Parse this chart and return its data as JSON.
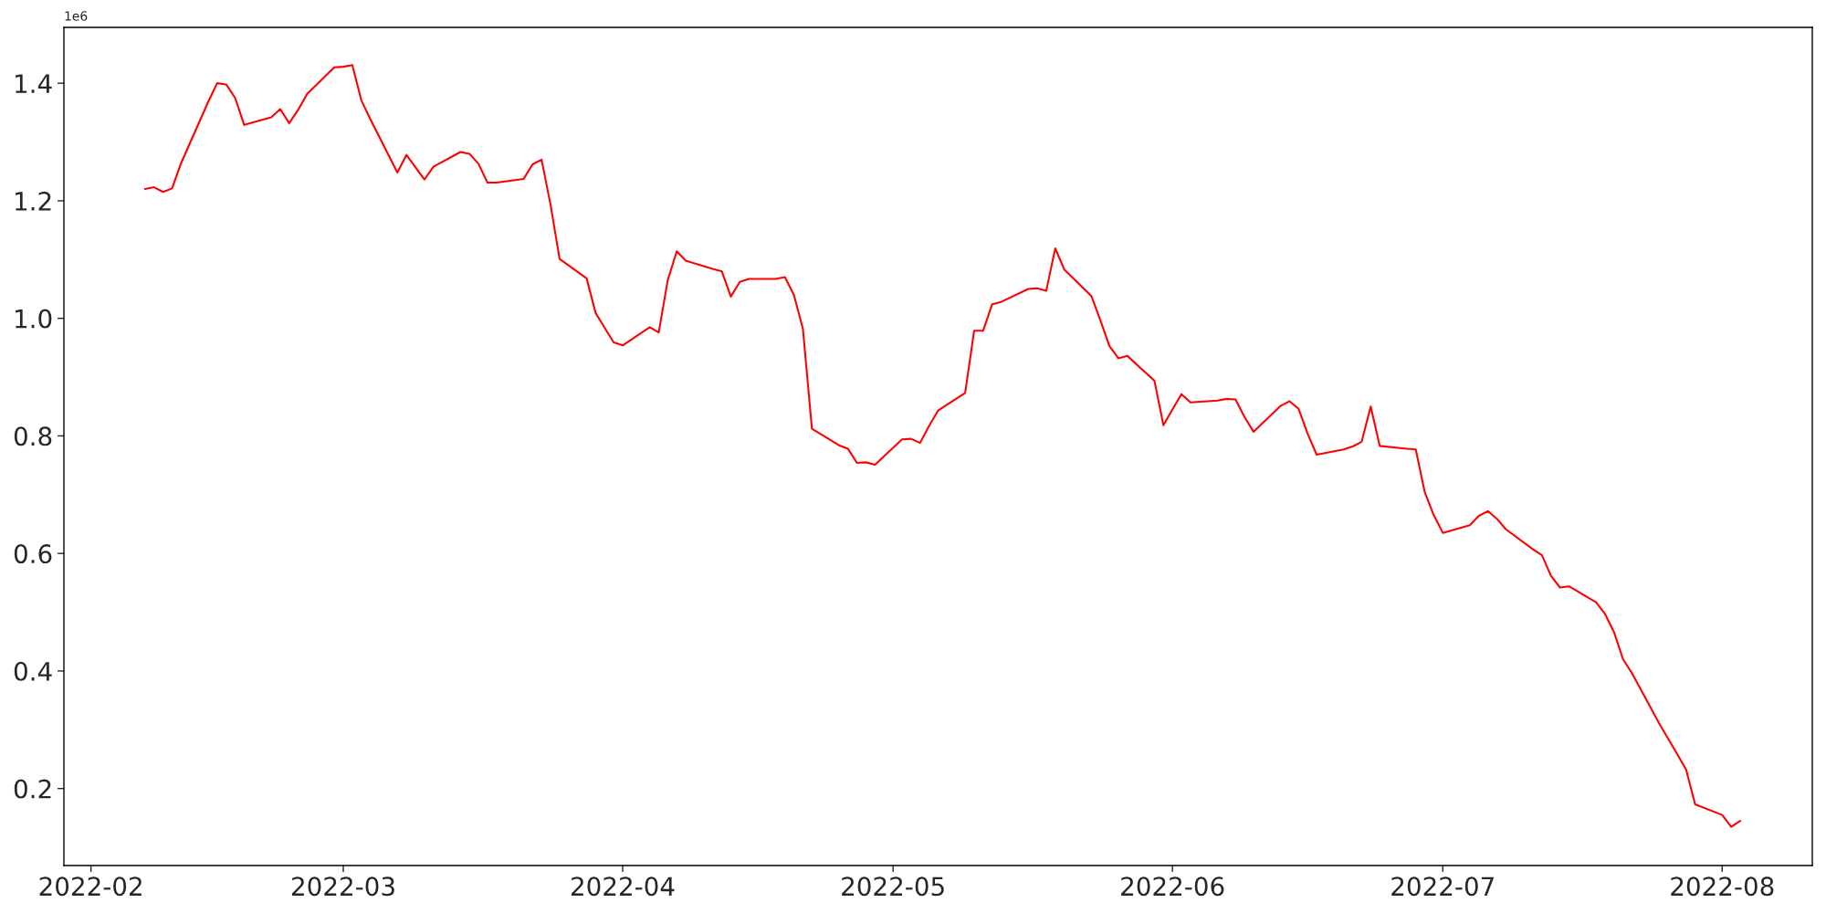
{
  "chart_data": {
    "type": "line",
    "x": [
      "2022-02-07",
      "2022-02-08",
      "2022-02-09",
      "2022-02-10",
      "2022-02-11",
      "2022-02-14",
      "2022-02-15",
      "2022-02-16",
      "2022-02-17",
      "2022-02-18",
      "2022-02-21",
      "2022-02-22",
      "2022-02-23",
      "2022-02-24",
      "2022-02-25",
      "2022-02-28",
      "2022-03-01",
      "2022-03-02",
      "2022-03-03",
      "2022-03-04",
      "2022-03-07",
      "2022-03-08",
      "2022-03-09",
      "2022-03-10",
      "2022-03-11",
      "2022-03-14",
      "2022-03-15",
      "2022-03-16",
      "2022-03-17",
      "2022-03-18",
      "2022-03-21",
      "2022-03-22",
      "2022-03-23",
      "2022-03-24",
      "2022-03-25",
      "2022-03-28",
      "2022-03-29",
      "2022-03-30",
      "2022-03-31",
      "2022-04-01",
      "2022-04-04",
      "2022-04-05",
      "2022-04-06",
      "2022-04-07",
      "2022-04-08",
      "2022-04-11",
      "2022-04-12",
      "2022-04-13",
      "2022-04-14",
      "2022-04-15",
      "2022-04-18",
      "2022-04-19",
      "2022-04-20",
      "2022-04-21",
      "2022-04-22",
      "2022-04-25",
      "2022-04-26",
      "2022-04-27",
      "2022-04-28",
      "2022-04-29",
      "2022-05-02",
      "2022-05-03",
      "2022-05-04",
      "2022-05-05",
      "2022-05-06",
      "2022-05-09",
      "2022-05-10",
      "2022-05-11",
      "2022-05-12",
      "2022-05-13",
      "2022-05-16",
      "2022-05-17",
      "2022-05-18",
      "2022-05-19",
      "2022-05-20",
      "2022-05-23",
      "2022-05-24",
      "2022-05-25",
      "2022-05-26",
      "2022-05-27",
      "2022-05-30",
      "2022-05-31",
      "2022-06-01",
      "2022-06-02",
      "2022-06-03",
      "2022-06-06",
      "2022-06-07",
      "2022-06-08",
      "2022-06-09",
      "2022-06-10",
      "2022-06-13",
      "2022-06-14",
      "2022-06-15",
      "2022-06-16",
      "2022-06-17",
      "2022-06-20",
      "2022-06-21",
      "2022-06-22",
      "2022-06-23",
      "2022-06-24",
      "2022-06-27",
      "2022-06-28",
      "2022-06-29",
      "2022-06-30",
      "2022-07-01",
      "2022-07-04",
      "2022-07-05",
      "2022-07-06",
      "2022-07-07",
      "2022-07-08",
      "2022-07-11",
      "2022-07-12",
      "2022-07-13",
      "2022-07-14",
      "2022-07-15",
      "2022-07-18",
      "2022-07-19",
      "2022-07-20",
      "2022-07-21",
      "2022-07-22",
      "2022-07-25",
      "2022-07-26",
      "2022-07-27",
      "2022-07-28",
      "2022-07-29",
      "2022-08-01",
      "2022-08-02",
      "2022-08-03"
    ],
    "series": [
      {
        "color": "#ff0000",
        "values": [
          1.22,
          1.223,
          1.215,
          1.221,
          1.264,
          1.368,
          1.4,
          1.398,
          1.375,
          1.329,
          1.342,
          1.356,
          1.332,
          1.355,
          1.382,
          1.427,
          1.428,
          1.431,
          1.371,
          1.339,
          1.248,
          1.278,
          1.257,
          1.236,
          1.258,
          1.283,
          1.28,
          1.263,
          1.231,
          1.231,
          1.237,
          1.262,
          1.27,
          1.193,
          1.101,
          1.068,
          1.009,
          0.984,
          0.959,
          0.954,
          0.985,
          0.976,
          1.065,
          1.114,
          1.098,
          1.084,
          1.08,
          1.037,
          1.062,
          1.067,
          1.067,
          1.07,
          1.04,
          0.982,
          0.812,
          0.784,
          0.778,
          0.754,
          0.755,
          0.751,
          0.794,
          0.795,
          0.788,
          0.817,
          0.843,
          0.873,
          0.979,
          0.979,
          1.024,
          1.028,
          1.05,
          1.051,
          1.047,
          1.119,
          1.083,
          1.038,
          0.997,
          0.953,
          0.932,
          0.936,
          0.894,
          0.818,
          0.845,
          0.871,
          0.857,
          0.86,
          0.863,
          0.862,
          0.832,
          0.807,
          0.851,
          0.859,
          0.846,
          0.804,
          0.768,
          0.777,
          0.782,
          0.79,
          0.85,
          0.783,
          0.778,
          0.777,
          0.704,
          0.665,
          0.635,
          0.648,
          0.664,
          0.672,
          0.659,
          0.641,
          0.607,
          0.597,
          0.562,
          0.542,
          0.544,
          0.517,
          0.497,
          0.466,
          0.42,
          0.396,
          0.311,
          0.285,
          0.259,
          0.232,
          0.173,
          0.155,
          0.135,
          0.145
        ]
      }
    ],
    "xlim": [
      "2022-01-29",
      "2022-08-11"
    ],
    "xticks": [
      {
        "value": "2022-02-01",
        "label": "2022-02"
      },
      {
        "value": "2022-03-01",
        "label": "2022-03"
      },
      {
        "value": "2022-04-01",
        "label": "2022-04"
      },
      {
        "value": "2022-05-01",
        "label": "2022-05"
      },
      {
        "value": "2022-06-01",
        "label": "2022-06"
      },
      {
        "value": "2022-07-01",
        "label": "2022-07"
      },
      {
        "value": "2022-08-01",
        "label": "2022-08"
      }
    ],
    "ylim": [
      0.069,
      1.495
    ],
    "yticks": [
      {
        "value": 0.2,
        "label": "0.2"
      },
      {
        "value": 0.4,
        "label": "0.4"
      },
      {
        "value": 0.6,
        "label": "0.6"
      },
      {
        "value": 0.8,
        "label": "0.8"
      },
      {
        "value": 1.0,
        "label": "1.0"
      },
      {
        "value": 1.2,
        "label": "1.2"
      },
      {
        "value": 1.4,
        "label": "1.4"
      }
    ],
    "annotations": [
      "1e6"
    ],
    "grid": false,
    "marker": "none",
    "line_style": "solid"
  }
}
